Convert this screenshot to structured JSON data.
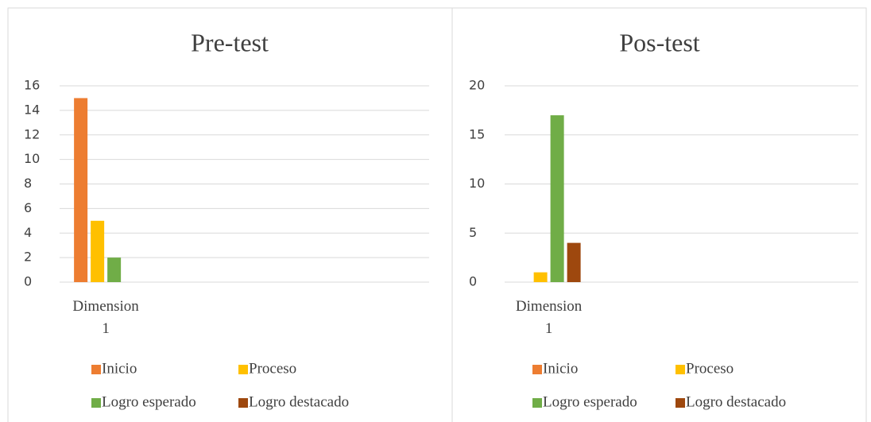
{
  "chart_data": [
    {
      "type": "bar",
      "title": "Pre-test",
      "categories": [
        "Dimension 1",
        null,
        null,
        null
      ],
      "series": [
        {
          "name": "Inicio",
          "color": "#ED7D31",
          "values": [
            15,
            null,
            null,
            null
          ]
        },
        {
          "name": "Proceso",
          "color": "#FFC000",
          "values": [
            5,
            null,
            null,
            null
          ]
        },
        {
          "name": "Logro esperado",
          "color": "#70AD47",
          "values": [
            2,
            null,
            null,
            null
          ]
        },
        {
          "name": "Logro destacado",
          "color": "#9E480E",
          "values": [
            0,
            null,
            null,
            null
          ]
        }
      ],
      "ylim": [
        0,
        16
      ],
      "yticks": [
        0,
        2,
        4,
        6,
        8,
        10,
        12,
        14,
        16
      ],
      "grid": true,
      "legend": "bottom"
    },
    {
      "type": "bar",
      "title": "Pos-test",
      "categories": [
        "Dimension 1",
        null,
        null,
        null
      ],
      "series": [
        {
          "name": "Inicio",
          "color": "#ED7D31",
          "values": [
            0,
            null,
            null,
            null
          ]
        },
        {
          "name": "Proceso",
          "color": "#FFC000",
          "values": [
            1,
            null,
            null,
            null
          ]
        },
        {
          "name": "Logro esperado",
          "color": "#70AD47",
          "values": [
            17,
            null,
            null,
            null
          ]
        },
        {
          "name": "Logro destacado",
          "color": "#9E480E",
          "values": [
            4,
            null,
            null,
            null
          ]
        }
      ],
      "ylim": [
        0,
        20
      ],
      "yticks": [
        0,
        5,
        10,
        15,
        20
      ],
      "grid": true,
      "legend": "bottom"
    }
  ]
}
